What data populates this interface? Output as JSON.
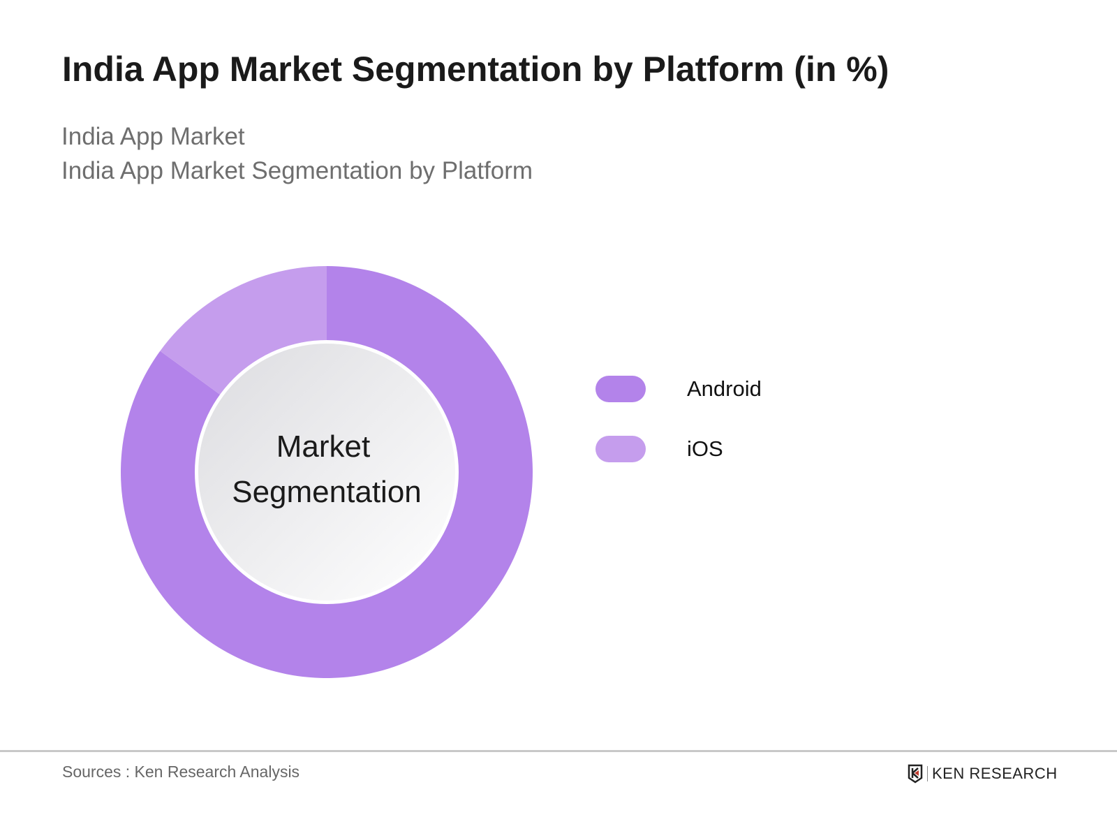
{
  "chart_data": {
    "type": "pie",
    "variant": "donut",
    "title": "India App Market Segmentation by Platform (in %)",
    "subtitle_lines": [
      "India App Market",
      "India App Market Segmentation by Platform"
    ],
    "center_label": [
      "Market",
      "Segmentation"
    ],
    "categories": [
      "Android",
      "iOS"
    ],
    "values": [
      85,
      15
    ],
    "colors": [
      "#b383ea",
      "#c59ded"
    ],
    "legend_position": "right"
  },
  "footer": {
    "sources": "Sources : Ken Research Analysis",
    "logo_text": "KEN RESEARCH"
  }
}
